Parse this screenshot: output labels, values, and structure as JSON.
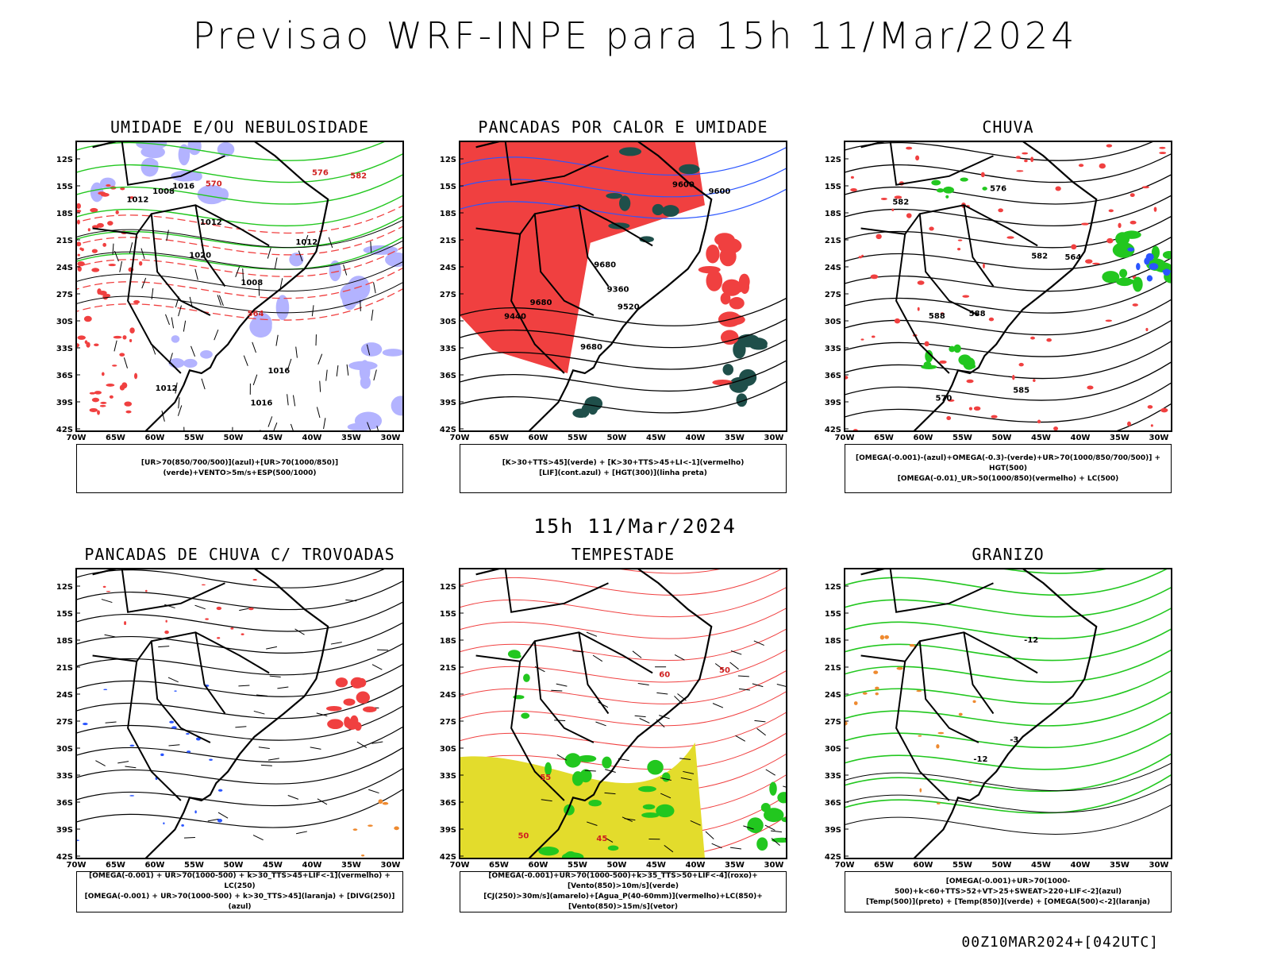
{
  "title": "Previsao WRF-INPE  para 15h 11/Mar/2024",
  "mid_time": "15h 11/Mar/2024",
  "footer": "00Z10MAR2024+[042UTC]",
  "axes": {
    "lat_labels": [
      "12S",
      "15S",
      "18S",
      "21S",
      "24S",
      "27S",
      "30S",
      "33S",
      "36S",
      "39S",
      "42S"
    ],
    "lon_labels": [
      "70W",
      "65W",
      "60W",
      "55W",
      "50W",
      "45W",
      "40W",
      "35W",
      "30W"
    ]
  },
  "panels": [
    {
      "title": "UMIDADE E/OU NEBULOSIDADE",
      "legend": [
        "[UR>70(850/700/500)](azul)+[UR>70(1000/850)](verde)+VENTO>5m/s+ESP(500/1000)"
      ],
      "contour_labels": [
        "1008",
        "1012",
        "1016",
        "1012",
        "1012",
        "1016",
        "1012",
        "1020",
        "1016",
        "1008",
        "582",
        "576",
        "570",
        "564"
      ]
    },
    {
      "title": "PANCADAS POR CALOR E UMIDADE",
      "legend": [
        "[K>30+TTS>45](verde) + [K>30+TTS>45+LI<-1](vermelho)",
        "[LIF](cont.azul) + [HGT(300)](linha preta)"
      ],
      "contour_labels": [
        "9680",
        "9680",
        "9600",
        "9520",
        "9440",
        "9360",
        "9680",
        "9600"
      ]
    },
    {
      "title": "CHUVA",
      "legend": [
        "[OMEGA(-0.001)-(azul)+OMEGA(-0.3)-(verde)+UR>70(1000/850/700/500)] + HGT(500)",
        "[OMEGA(-0.01)_UR>50(1000/850)(vermelho) + LC(500)"
      ],
      "contour_labels": [
        "588",
        "582",
        "576",
        "570",
        "564",
        "585",
        "588",
        "582"
      ]
    },
    {
      "title": "PANCADAS DE CHUVA C/ TROVOADAS",
      "legend": [
        "[OMEGA(-0.001) + UR>70(1000-500) + k>30_TTS>45+LIF<-1](vermelho) + LC(250)",
        "[OMEGA(-0.001) + UR>70(1000-500) + k>30_TTS>45](laranja) + [DIVG(250)](azul)"
      ],
      "contour_labels": []
    },
    {
      "title": "TEMPESTADE",
      "legend": [
        "[OMEGA(-0.001)+UR>70(1000-500)+k>35_TTS>50+LIF<-4](roxo)+[Vento(850)>10m/s](verde)",
        "[CJ(250)>30m/s](amarelo)+[Agua_P(40-60mm)](vermelho)+LC(850)+[Vento(850)>15m/s](vetor)"
      ],
      "contour_labels": [
        "50",
        "55",
        "45",
        "60",
        "50"
      ]
    },
    {
      "title": "GRANIZO",
      "legend": [
        "[OMEGA(-0.001)+UR>70(1000-500)+k<60+TTS>52+VT>25+SWEAT>220+LIF<-2](azul)",
        "[Temp(500)](preto) + [Temp(850)](verde) + [OMEGA(500)<-2](laranja)"
      ],
      "contour_labels": [
        "-12",
        "-12",
        "-3"
      ]
    }
  ],
  "colors": {
    "red": "#f04040",
    "green": "#22c71f",
    "blue": "#2a55ff",
    "lavender": "#b3b3ff",
    "darkgreen": "#1f4f4a",
    "yellow": "#e3dc2c",
    "orange": "#ee8a30"
  }
}
